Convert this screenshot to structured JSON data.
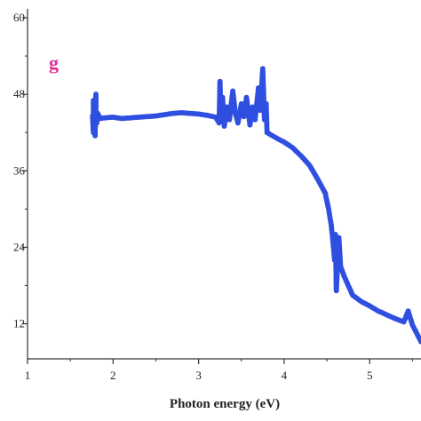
{
  "chart_data": {
    "type": "scatter",
    "panel_label": "g",
    "panel_label_color": "#e0309a",
    "xlabel": "Photon energy (eV)",
    "ylabel": "",
    "xlim": [
      1,
      5.6
    ],
    "ylim": [
      6.5,
      60
    ],
    "x_ticks": [
      1,
      2,
      3,
      4,
      5
    ],
    "y_ticks": [
      12,
      24,
      36,
      48,
      60
    ],
    "y_tick_labels": [
      "12",
      "24",
      "36",
      "48",
      "60"
    ],
    "grid": false,
    "marker_color": "#2f4fe0",
    "series": [
      {
        "values_xy": [
          [
            1.76,
            44.6
          ],
          [
            1.77,
            42.0
          ],
          [
            1.77,
            47.0
          ],
          [
            1.78,
            43.0
          ],
          [
            1.78,
            45.5
          ],
          [
            1.79,
            41.5
          ],
          [
            1.8,
            48.0
          ],
          [
            1.8,
            44.0
          ],
          [
            1.81,
            43.5
          ],
          [
            1.82,
            45.0
          ],
          [
            1.85,
            44.2
          ],
          [
            1.9,
            44.3
          ],
          [
            2.0,
            44.4
          ],
          [
            2.1,
            44.2
          ],
          [
            2.2,
            44.3
          ],
          [
            2.3,
            44.4
          ],
          [
            2.4,
            44.5
          ],
          [
            2.5,
            44.6
          ],
          [
            2.6,
            44.8
          ],
          [
            2.7,
            45.0
          ],
          [
            2.8,
            45.1
          ],
          [
            2.9,
            45.0
          ],
          [
            3.0,
            44.9
          ],
          [
            3.1,
            44.7
          ],
          [
            3.2,
            44.4
          ],
          [
            3.24,
            43.5
          ],
          [
            3.25,
            50.0
          ],
          [
            3.26,
            45.0
          ],
          [
            3.28,
            47.5
          ],
          [
            3.3,
            43.0
          ],
          [
            3.33,
            46.0
          ],
          [
            3.36,
            44.0
          ],
          [
            3.4,
            48.5
          ],
          [
            3.43,
            45.0
          ],
          [
            3.46,
            43.5
          ],
          [
            3.5,
            46.5
          ],
          [
            3.53,
            44.5
          ],
          [
            3.56,
            47.5
          ],
          [
            3.6,
            43.2
          ],
          [
            3.63,
            46.0
          ],
          [
            3.66,
            44.0
          ],
          [
            3.7,
            49.0
          ],
          [
            3.72,
            45.5
          ],
          [
            3.75,
            52.0
          ],
          [
            3.77,
            44.0
          ],
          [
            3.79,
            46.5
          ],
          [
            3.8,
            42.0
          ],
          [
            3.85,
            41.6
          ],
          [
            3.9,
            41.2
          ],
          [
            4.0,
            40.5
          ],
          [
            4.1,
            39.6
          ],
          [
            4.2,
            38.3
          ],
          [
            4.3,
            36.8
          ],
          [
            4.4,
            34.5
          ],
          [
            4.48,
            32.5
          ],
          [
            4.52,
            30.0
          ],
          [
            4.55,
            27.5
          ],
          [
            4.57,
            25.0
          ],
          [
            4.59,
            22.0
          ],
          [
            4.6,
            26.0
          ],
          [
            4.61,
            17.2
          ],
          [
            4.62,
            20.0
          ],
          [
            4.64,
            25.5
          ],
          [
            4.66,
            21.0
          ],
          [
            4.7,
            19.5
          ],
          [
            4.75,
            18.0
          ],
          [
            4.8,
            16.5
          ],
          [
            4.9,
            15.5
          ],
          [
            5.0,
            14.8
          ],
          [
            5.1,
            14.0
          ],
          [
            5.2,
            13.4
          ],
          [
            5.3,
            12.8
          ],
          [
            5.4,
            12.3
          ],
          [
            5.45,
            14.0
          ],
          [
            5.5,
            11.8
          ],
          [
            5.55,
            10.5
          ],
          [
            5.6,
            9.2
          ]
        ]
      }
    ]
  }
}
